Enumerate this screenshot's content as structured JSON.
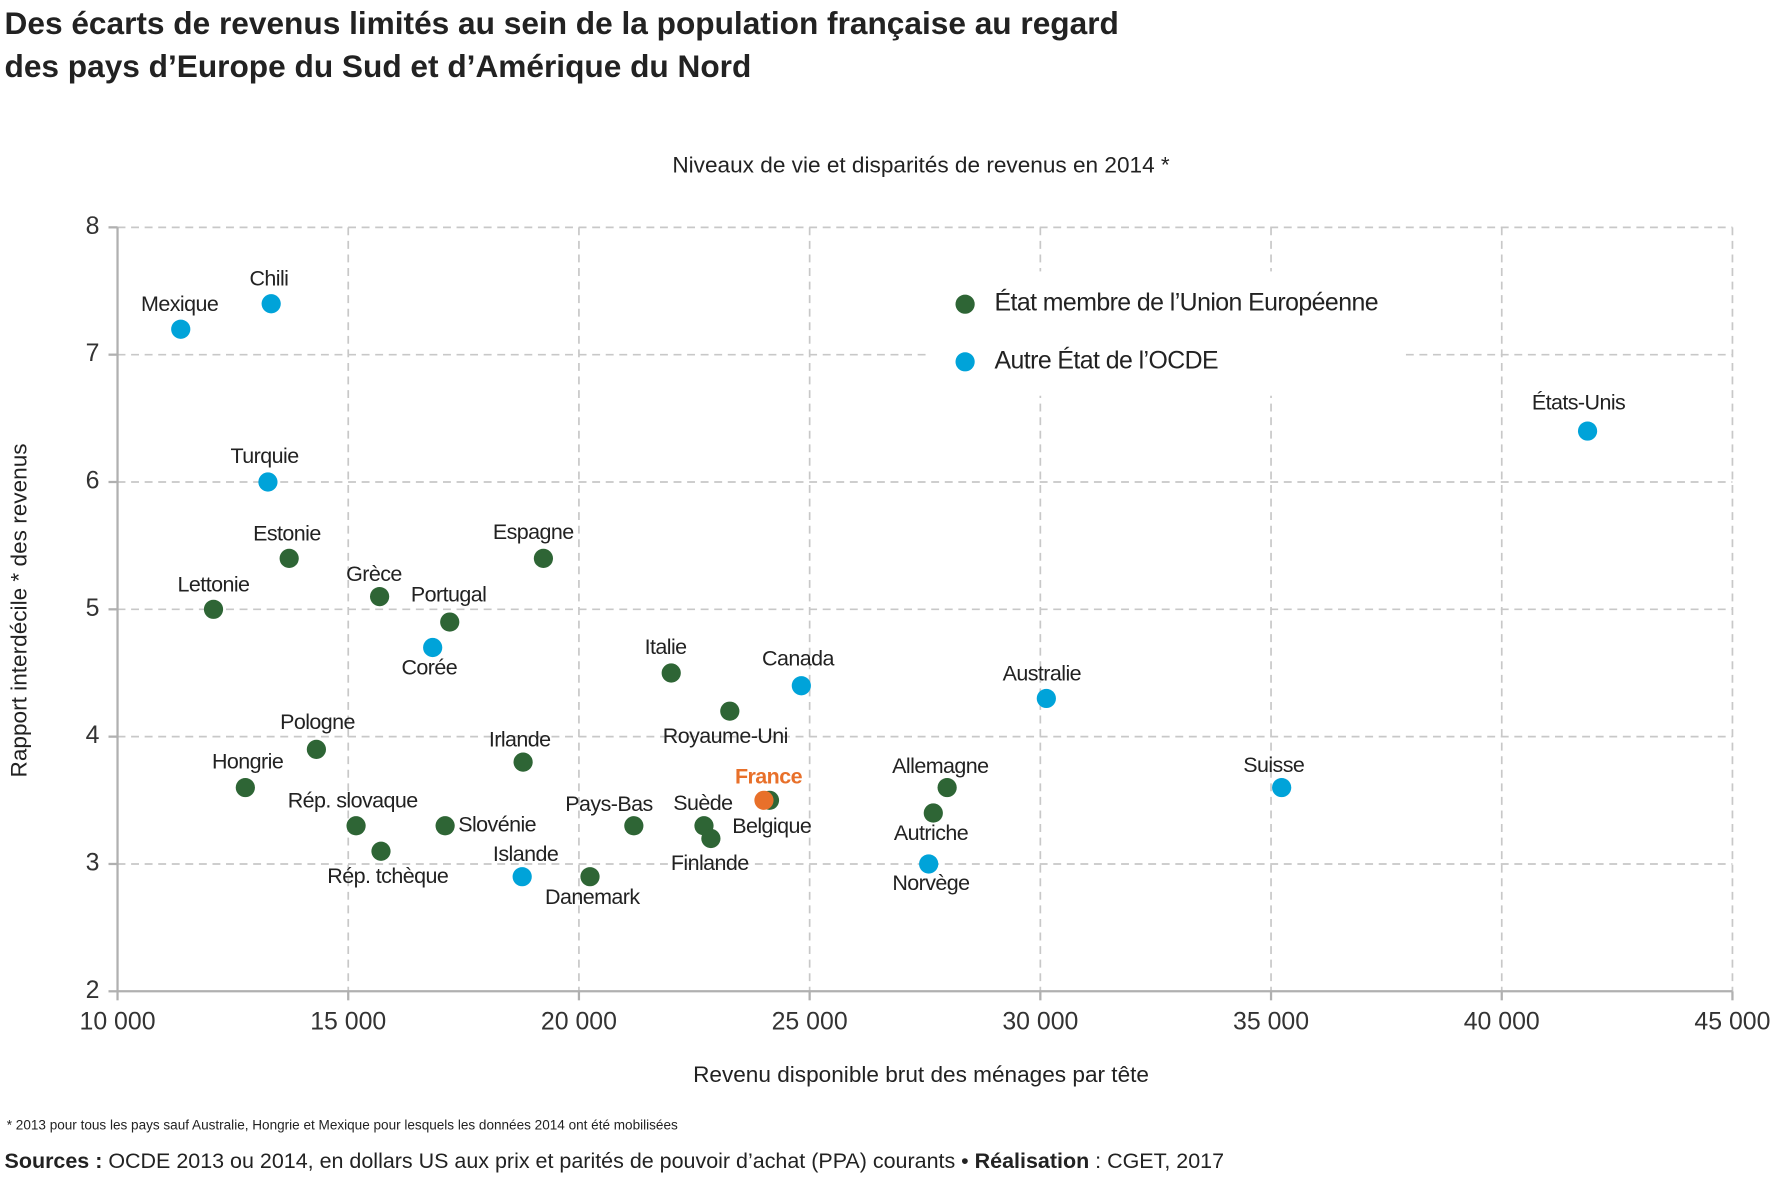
{
  "chart_data": {
    "type": "scatter",
    "title": [
      "Des écarts de revenus limités au sein de la population française au regard",
      "des pays d’Europe du Sud et d’Amérique du Nord"
    ],
    "subtitle": "Niveaux de vie et disparités de revenus en 2014 *",
    "xlabel": "Revenu disponible brut des ménages par tête",
    "ylabel": "Rapport interdécile * des revenus",
    "xlim": [
      10000,
      45000
    ],
    "xticks": [
      {
        "value": 10000,
        "label": "10 000"
      },
      {
        "value": 15000,
        "label": "15 000"
      },
      {
        "value": 20000,
        "label": "20 000"
      },
      {
        "value": 25000,
        "label": "25 000"
      },
      {
        "value": 30000,
        "label": "30 000"
      },
      {
        "value": 35000,
        "label": "35 000"
      },
      {
        "value": 40000,
        "label": "40 000"
      },
      {
        "value": 45000,
        "label": "45 000"
      }
    ],
    "ylim": [
      2,
      8
    ],
    "yticks": [
      2,
      3,
      4,
      5,
      6,
      7,
      8
    ],
    "grid": true,
    "legend": "upper right",
    "series": [
      {
        "name": "État membre de l’Union Européenne",
        "color": "#2e6535",
        "labels": [
          "Estonie",
          "Lettonie",
          "Grèce",
          "Portugal",
          "Espagne",
          "Pologne",
          "Hongrie",
          "Rép. slovaque",
          "Rép. tchèque",
          "Slovénie",
          "Irlande",
          "Danemark",
          "Pays-Bas",
          "Italie",
          "Royaume-Uni",
          "Suède",
          "Finlande",
          "Belgique",
          "France",
          "Allemagne",
          "Autriche"
        ],
        "x": [
          13720,
          12080,
          15680,
          17200,
          19230,
          14310,
          12770,
          15170,
          15710,
          17100,
          18790,
          20240,
          21190,
          22000,
          23270,
          22710,
          22860,
          24130,
          24010,
          27980,
          27680
        ],
        "values": [
          5.4,
          5.0,
          5.1,
          4.9,
          5.4,
          3.9,
          3.6,
          3.3,
          3.1,
          3.3,
          3.8,
          2.9,
          3.3,
          4.5,
          4.2,
          3.3,
          3.2,
          3.5,
          3.5,
          3.6,
          3.4
        ],
        "highlight": {
          "index": 18,
          "color": "#e8702a"
        }
      },
      {
        "name": "Autre État de l’OCDE",
        "color": "#00a3d9",
        "labels": [
          "Mexique",
          "Chili",
          "Turquie",
          "Corée",
          "Islande",
          "Canada",
          "Norvège",
          "Australie",
          "Suisse",
          "États-Unis"
        ],
        "x": [
          11370,
          13330,
          13260,
          16830,
          18770,
          24820,
          27580,
          30130,
          35230,
          41860
        ],
        "values": [
          7.2,
          7.4,
          6.0,
          4.7,
          2.9,
          4.4,
          3.0,
          4.3,
          3.6,
          6.4
        ]
      }
    ],
    "footnote": "* 2013 pour tous les pays sauf Australie, Hongrie et Mexique pour lesquels les données 2014 ont été mobilisées",
    "source": [
      {
        "text": "Sources :",
        "bold": true
      },
      {
        "text": " OCDE 2013 ou 2014, en dollars US aux prix et parités de pouvoir d’achat (PPA) courants • ",
        "bold": false
      },
      {
        "text": "Réalisation",
        "bold": true
      },
      {
        "text": " : CGET, 2017",
        "bold": false
      }
    ]
  }
}
